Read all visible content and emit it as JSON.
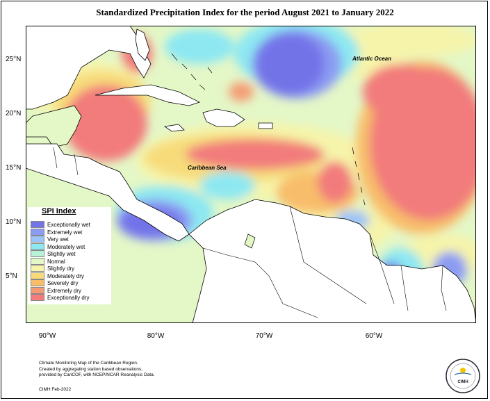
{
  "title": "Standardized Precipitation Index for the period August 2021 to January 2022",
  "lat_labels": [
    "25°N",
    "20°N",
    "15°N",
    "10°N",
    "5°N"
  ],
  "lon_labels": [
    "90°W",
    "80°W",
    "70°W",
    "60°W"
  ],
  "labels": {
    "atlantic": "Atlantic Ocean",
    "caribbean": "Caribbean Sea"
  },
  "legend": {
    "title": "SPI Index",
    "items": [
      {
        "label": "Exceptionally wet",
        "color": "#7373e8"
      },
      {
        "label": "Extremely wet",
        "color": "#8c9cf2"
      },
      {
        "label": "Very wet",
        "color": "#9cc4f7"
      },
      {
        "label": "Moderately wet",
        "color": "#8de8f2"
      },
      {
        "label": "Slightly wet",
        "color": "#b8f0d8"
      },
      {
        "label": "Normal",
        "color": "#e4f7c7"
      },
      {
        "label": "Slightly dry",
        "color": "#f6f4aa"
      },
      {
        "label": "Moderately dry",
        "color": "#f7db7a"
      },
      {
        "label": "Severely dry",
        "color": "#f8bd6b"
      },
      {
        "label": "Extremely dry",
        "color": "#f59b73"
      },
      {
        "label": "Exceptionally dry",
        "color": "#f27b7b"
      }
    ]
  },
  "credit": {
    "lines": [
      "Climate Monitoring Map of the Caribbean Region.",
      "Created by aggregating station based observations,",
      "provided by CariCOF, with NCEP/NCAR Reanalysis Data."
    ],
    "date": "CIMH Feb-2022"
  },
  "logo_text": "CIMH"
}
